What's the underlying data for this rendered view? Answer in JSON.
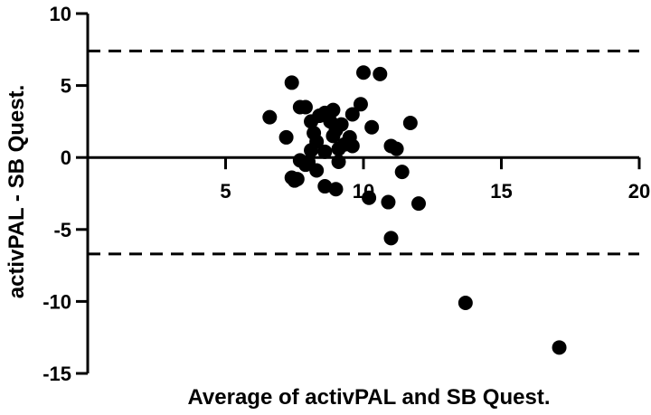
{
  "chart_data": {
    "type": "scatter",
    "title": "",
    "xlabel": "Average of activPAL and SB Quest.",
    "ylabel": "activPAL - SB Quest.",
    "xlim": [
      0,
      20
    ],
    "ylim": [
      -15,
      10
    ],
    "x_ticks": [
      5,
      10,
      15,
      20
    ],
    "y_ticks": [
      10,
      5,
      0,
      -5,
      -10,
      -15
    ],
    "x_tick_labels": [
      "5",
      "10",
      "15",
      "20"
    ],
    "y_tick_labels": [
      "10",
      "5",
      "0",
      "-5",
      "-10",
      "-15"
    ],
    "grid": false,
    "legend": "none",
    "colors": {
      "points": "#000000",
      "lines": "#000000"
    },
    "reference_lines": [
      {
        "style": "dashed",
        "y": 7.4
      },
      {
        "style": "dashed",
        "y": -6.7
      }
    ],
    "points": [
      {
        "x": 10.0,
        "y": 5.9
      },
      {
        "x": 10.6,
        "y": 5.8
      },
      {
        "x": 7.4,
        "y": 5.2
      },
      {
        "x": 9.9,
        "y": 3.7
      },
      {
        "x": 7.7,
        "y": 3.5
      },
      {
        "x": 7.9,
        "y": 3.5
      },
      {
        "x": 8.9,
        "y": 3.3
      },
      {
        "x": 8.6,
        "y": 3.1
      },
      {
        "x": 9.6,
        "y": 3.0
      },
      {
        "x": 8.4,
        "y": 2.9
      },
      {
        "x": 6.6,
        "y": 2.8
      },
      {
        "x": 8.1,
        "y": 2.5
      },
      {
        "x": 8.8,
        "y": 2.5
      },
      {
        "x": 11.7,
        "y": 2.4
      },
      {
        "x": 9.2,
        "y": 2.3
      },
      {
        "x": 10.3,
        "y": 2.1
      },
      {
        "x": 9.0,
        "y": 1.9
      },
      {
        "x": 8.2,
        "y": 1.7
      },
      {
        "x": 8.9,
        "y": 1.5
      },
      {
        "x": 9.5,
        "y": 1.4
      },
      {
        "x": 7.2,
        "y": 1.4
      },
      {
        "x": 8.3,
        "y": 1.1
      },
      {
        "x": 9.3,
        "y": 0.9
      },
      {
        "x": 9.6,
        "y": 0.8
      },
      {
        "x": 11.0,
        "y": 0.8
      },
      {
        "x": 9.1,
        "y": 0.6
      },
      {
        "x": 11.2,
        "y": 0.6
      },
      {
        "x": 8.1,
        "y": 0.5
      },
      {
        "x": 8.6,
        "y": 0.4
      },
      {
        "x": 7.7,
        "y": -0.2
      },
      {
        "x": 8.0,
        "y": -0.3
      },
      {
        "x": 9.1,
        "y": -0.3
      },
      {
        "x": 7.9,
        "y": -0.5
      },
      {
        "x": 8.3,
        "y": -0.9
      },
      {
        "x": 11.4,
        "y": -1.0
      },
      {
        "x": 7.4,
        "y": -1.4
      },
      {
        "x": 7.6,
        "y": -1.5
      },
      {
        "x": 7.5,
        "y": -1.6
      },
      {
        "x": 8.6,
        "y": -2.0
      },
      {
        "x": 9.0,
        "y": -2.2
      },
      {
        "x": 10.2,
        "y": -2.8
      },
      {
        "x": 10.9,
        "y": -3.1
      },
      {
        "x": 12.0,
        "y": -3.2
      },
      {
        "x": 11.0,
        "y": -5.6
      },
      {
        "x": 13.7,
        "y": -10.1
      },
      {
        "x": 17.1,
        "y": -13.2
      }
    ]
  }
}
